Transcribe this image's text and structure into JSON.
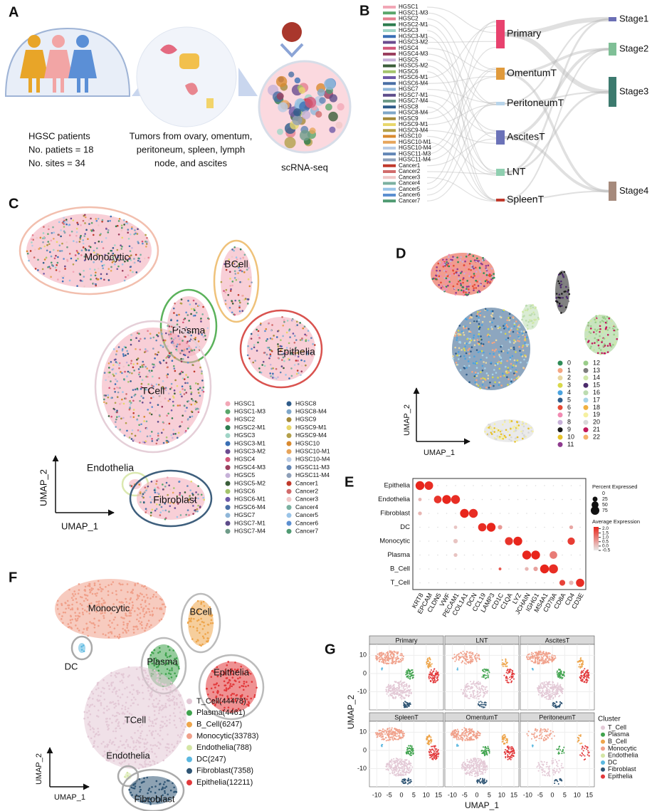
{
  "panels": {
    "A": {
      "label": "A",
      "patients": [
        "HGSC patients",
        "No. patiets = 18",
        "No. sites = 34"
      ],
      "tumors": [
        "Tumors from ovary, omentum,",
        "peritoneum, spleen, lymph",
        "node, and ascites"
      ],
      "method": "scRNA-seq"
    },
    "B": {
      "label": "B",
      "samples": [
        {
          "name": "HGSC1",
          "color": "#f2a7b6"
        },
        {
          "name": "HGSC1-M3",
          "color": "#5aa66a"
        },
        {
          "name": "HGSC2",
          "color": "#e57f8e"
        },
        {
          "name": "HGSC2-M1",
          "color": "#2e7d4f"
        },
        {
          "name": "HGSC3",
          "color": "#9fd4c6"
        },
        {
          "name": "HGSC3-M1",
          "color": "#3a6fb5"
        },
        {
          "name": "HGSC3-M2",
          "color": "#6b4b8f"
        },
        {
          "name": "HGSC4",
          "color": "#d2577a"
        },
        {
          "name": "HGSC4-M3",
          "color": "#9b3f5e"
        },
        {
          "name": "HGSC5",
          "color": "#c6b1d8"
        },
        {
          "name": "HGSC5-M2",
          "color": "#3b5e3a"
        },
        {
          "name": "HGSC6",
          "color": "#a4c46c"
        },
        {
          "name": "HGSC6-M1",
          "color": "#6f5aa8"
        },
        {
          "name": "HGSC6-M4",
          "color": "#4a6fa5"
        },
        {
          "name": "HGSC7",
          "color": "#8fb6d8"
        },
        {
          "name": "HGSC7-M1",
          "color": "#5d4c8a"
        },
        {
          "name": "HGSC7-M4",
          "color": "#6e9b88"
        },
        {
          "name": "HGSC8",
          "color": "#2f5c8a"
        },
        {
          "name": "HGSC8-M4",
          "color": "#7fa7c9"
        },
        {
          "name": "HGSC9",
          "color": "#a58a3a"
        },
        {
          "name": "HGSC9-M1",
          "color": "#e8d76b"
        },
        {
          "name": "HGSC9-M4",
          "color": "#b3a04a"
        },
        {
          "name": "HGSC10",
          "color": "#d98a2f"
        },
        {
          "name": "HGSC10-M1",
          "color": "#e7a55b"
        },
        {
          "name": "HGSC10-M4",
          "color": "#b9cbe4"
        },
        {
          "name": "HGSC11-M3",
          "color": "#6185b5"
        },
        {
          "name": "HGSC11-M4",
          "color": "#8e9fb8"
        },
        {
          "name": "Cancer1",
          "color": "#c0392b"
        },
        {
          "name": "Cancer2",
          "color": "#d16b6b"
        },
        {
          "name": "Cancer3",
          "color": "#f0c7c7"
        },
        {
          "name": "Cancer4",
          "color": "#7ab0a0"
        },
        {
          "name": "Cancer5",
          "color": "#9ac4e8"
        },
        {
          "name": "Cancer6",
          "color": "#5c8fd0"
        },
        {
          "name": "Cancer7",
          "color": "#4f9a72"
        }
      ],
      "sites": [
        {
          "name": "Primary",
          "color": "#e8426e"
        },
        {
          "name": "OmentumT",
          "color": "#e09a3c"
        },
        {
          "name": "PeritoneumT",
          "color": "#b8d4ea"
        },
        {
          "name": "AscitesT",
          "color": "#6b72b8"
        },
        {
          "name": "LNT",
          "color": "#8fcfb0"
        },
        {
          "name": "SpleenT",
          "color": "#c0392b"
        }
      ],
      "stages": [
        {
          "name": "Stage1",
          "color": "#6b6fb5"
        },
        {
          "name": "Stage2",
          "color": "#7fbf96"
        },
        {
          "name": "Stage3",
          "color": "#3c7a6e"
        },
        {
          "name": "Stage4",
          "color": "#a68a7c"
        }
      ]
    },
    "C": {
      "label": "C",
      "clusters": [
        "Monocytic",
        "BCell",
        "Plasma",
        "Epithelia",
        "TCell",
        "Endothelia",
        "Fibroblast"
      ],
      "xlabel": "UMAP_1",
      "ylabel": "UMAP_2"
    },
    "D": {
      "label": "D",
      "xlabel": "UMAP_1",
      "ylabel": "UMAP_2",
      "clusters": [
        {
          "name": "0",
          "color": "#2e8b57"
        },
        {
          "name": "1",
          "color": "#f4a582"
        },
        {
          "name": "2",
          "color": "#e8d7a0"
        },
        {
          "name": "3",
          "color": "#d9d94a"
        },
        {
          "name": "4",
          "color": "#4aa3df"
        },
        {
          "name": "5",
          "color": "#2f5d8a"
        },
        {
          "name": "6",
          "color": "#e64b35"
        },
        {
          "name": "7",
          "color": "#f28ab2"
        },
        {
          "name": "8",
          "color": "#c7b0d8"
        },
        {
          "name": "9",
          "color": "#1a1a1a"
        },
        {
          "name": "10",
          "color": "#e6c229"
        },
        {
          "name": "11",
          "color": "#8e3a8e"
        },
        {
          "name": "12",
          "color": "#9acd8a"
        },
        {
          "name": "13",
          "color": "#7d7d7d"
        },
        {
          "name": "14",
          "color": "#cfe8a8"
        },
        {
          "name": "15",
          "color": "#4b2a6b"
        },
        {
          "name": "16",
          "color": "#bcdcb0"
        },
        {
          "name": "17",
          "color": "#a7d3e8"
        },
        {
          "name": "18",
          "color": "#f0b040"
        },
        {
          "name": "19",
          "color": "#f5f0a0"
        },
        {
          "name": "20",
          "color": "#d8d8d8"
        },
        {
          "name": "21",
          "color": "#c2185b"
        },
        {
          "name": "22",
          "color": "#f6b26b"
        }
      ]
    },
    "E": {
      "label": "E",
      "cells": [
        "Epithelia",
        "Endothelia",
        "Fibroblast",
        "DC",
        "Monocytic",
        "Plasma",
        "B_Cell",
        "T_Cell"
      ],
      "genes": [
        "KRT8",
        "EPCAM",
        "CLDN5",
        "VWF",
        "PECAM1",
        "COL1A1",
        "DCN",
        "CCL19",
        "LAMP3",
        "CD1C",
        "C1QA",
        "LYZ",
        "JCHAIN",
        "IGHG1",
        "MS4A1",
        "CD79A",
        "CD8A",
        "CD4",
        "CD3E"
      ],
      "dots": [
        {
          "cell": "Epithelia",
          "gene": "KRT8",
          "pct": 80,
          "expr": 2.2
        },
        {
          "cell": "Epithelia",
          "gene": "EPCAM",
          "pct": 75,
          "expr": 2.1
        },
        {
          "cell": "Endothelia",
          "gene": "KRT8",
          "pct": 12,
          "expr": 0.2
        },
        {
          "cell": "Endothelia",
          "gene": "CLDN5",
          "pct": 60,
          "expr": 2
        },
        {
          "cell": "Endothelia",
          "gene": "VWF",
          "pct": 80,
          "expr": 2.2
        },
        {
          "cell": "Endothelia",
          "gene": "PECAM1",
          "pct": 80,
          "expr": 2.1
        },
        {
          "cell": "Fibroblast",
          "gene": "KRT8",
          "pct": 15,
          "expr": 0.2
        },
        {
          "cell": "Fibroblast",
          "gene": "COL1A1",
          "pct": 80,
          "expr": 2.2
        },
        {
          "cell": "Fibroblast",
          "gene": "DCN",
          "pct": 80,
          "expr": 2.1
        },
        {
          "cell": "DC",
          "gene": "PECAM1",
          "pct": 12,
          "expr": 0
        },
        {
          "cell": "DC",
          "gene": "CCL19",
          "pct": 70,
          "expr": 2.1
        },
        {
          "cell": "DC",
          "gene": "LAMP3",
          "pct": 80,
          "expr": 2.2
        },
        {
          "cell": "DC",
          "gene": "CD1C",
          "pct": 20,
          "expr": 0.6
        },
        {
          "cell": "DC",
          "gene": "CD4",
          "pct": 15,
          "expr": 0.4
        },
        {
          "cell": "Monocytic",
          "gene": "PECAM1",
          "pct": 20,
          "expr": 0
        },
        {
          "cell": "Monocytic",
          "gene": "C1QA",
          "pct": 65,
          "expr": 2
        },
        {
          "cell": "Monocytic",
          "gene": "LYZ",
          "pct": 80,
          "expr": 2.2
        },
        {
          "cell": "Monocytic",
          "gene": "CD4",
          "pct": 55,
          "expr": 1.9
        },
        {
          "cell": "Plasma",
          "gene": "PECAM1",
          "pct": 15,
          "expr": 0
        },
        {
          "cell": "Plasma",
          "gene": "JCHAIN",
          "pct": 80,
          "expr": 2.2
        },
        {
          "cell": "Plasma",
          "gene": "IGHG1",
          "pct": 80,
          "expr": 2.2
        },
        {
          "cell": "Plasma",
          "gene": "CD79A",
          "pct": 60,
          "expr": 1
        },
        {
          "cell": "B_Cell",
          "gene": "CD1C",
          "pct": 8,
          "expr": 1.5
        },
        {
          "cell": "B_Cell",
          "gene": "JCHAIN",
          "pct": 15,
          "expr": 0.2
        },
        {
          "cell": "B_Cell",
          "gene": "IGHG1",
          "pct": 20,
          "expr": 0.5
        },
        {
          "cell": "B_Cell",
          "gene": "MS4A1",
          "pct": 80,
          "expr": 2.2
        },
        {
          "cell": "B_Cell",
          "gene": "CD79A",
          "pct": 85,
          "expr": 2.1
        },
        {
          "cell": "T_Cell",
          "gene": "CD8A",
          "pct": 35,
          "expr": 1.8
        },
        {
          "cell": "T_Cell",
          "gene": "CD4",
          "pct": 20,
          "expr": 0.2
        },
        {
          "cell": "T_Cell",
          "gene": "CD3E",
          "pct": 70,
          "expr": 2.1
        }
      ],
      "pct_title": "Percent Expressed",
      "pct_ticks": [
        0,
        25,
        50,
        75
      ],
      "expr_title": "Average Expression",
      "expr_lim": [
        -0.5,
        2.2
      ],
      "expr_ticks": [
        {
          "value": 2,
          "label": "2.0"
        },
        {
          "value": 1.5,
          "label": "1.5"
        },
        {
          "value": 1,
          "label": "1.0"
        },
        {
          "value": 0.5,
          "label": "0.5"
        },
        {
          "value": 0,
          "label": "0.0"
        },
        {
          "value": -0.5,
          "label": "-0.5"
        }
      ]
    },
    "F": {
      "label": "F",
      "clusters": [
        "Monocytic",
        "DC",
        "BCell",
        "Plasma",
        "Epithelia",
        "TCell",
        "Endothelia",
        "Fibroblast"
      ],
      "xlabel": "UMAP_1",
      "ylabel": "UMAP_2",
      "legend": [
        {
          "name": "T_Cell(44478)",
          "color": "#e3c9d6"
        },
        {
          "name": "Plasma(4461)",
          "color": "#3fa34d"
        },
        {
          "name": "B_Cell(6247)",
          "color": "#eea54b"
        },
        {
          "name": "Monocytic(33783)",
          "color": "#f0a08a"
        },
        {
          "name": "Endothelia(788)",
          "color": "#d4e6a5"
        },
        {
          "name": "DC(247)",
          "color": "#5bb8e0"
        },
        {
          "name": "Fibroblast(7358)",
          "color": "#2f5574"
        },
        {
          "name": "Epithelia(12211)",
          "color": "#e2393b"
        }
      ]
    },
    "G": {
      "label": "G",
      "facets": [
        "Primary",
        "LNT",
        "AscitesT",
        "SpleenT",
        "OmentumT",
        "PeritoneumT"
      ],
      "xlabel": "UMAP_1",
      "ylabel": "UMAP_2",
      "xlim": [
        -13,
        17
      ],
      "ylim": [
        -20,
        16
      ],
      "xticks": [
        -10,
        -5,
        0,
        5,
        10,
        15
      ],
      "yticks": [
        10,
        0,
        -10
      ],
      "legend_title": "Cluster",
      "legend": [
        {
          "name": "T_Cell",
          "color": "#e3c9d6"
        },
        {
          "name": "Plasma",
          "color": "#3fa34d"
        },
        {
          "name": "B_Cell",
          "color": "#eea54b"
        },
        {
          "name": "Monocytic",
          "color": "#f0a08a"
        },
        {
          "name": "Endothelia",
          "color": "#d4e6a5"
        },
        {
          "name": "DC",
          "color": "#5bb8e0"
        },
        {
          "name": "Fibroblast",
          "color": "#2f5574"
        },
        {
          "name": "Epithelia",
          "color": "#e2393b"
        }
      ]
    }
  }
}
